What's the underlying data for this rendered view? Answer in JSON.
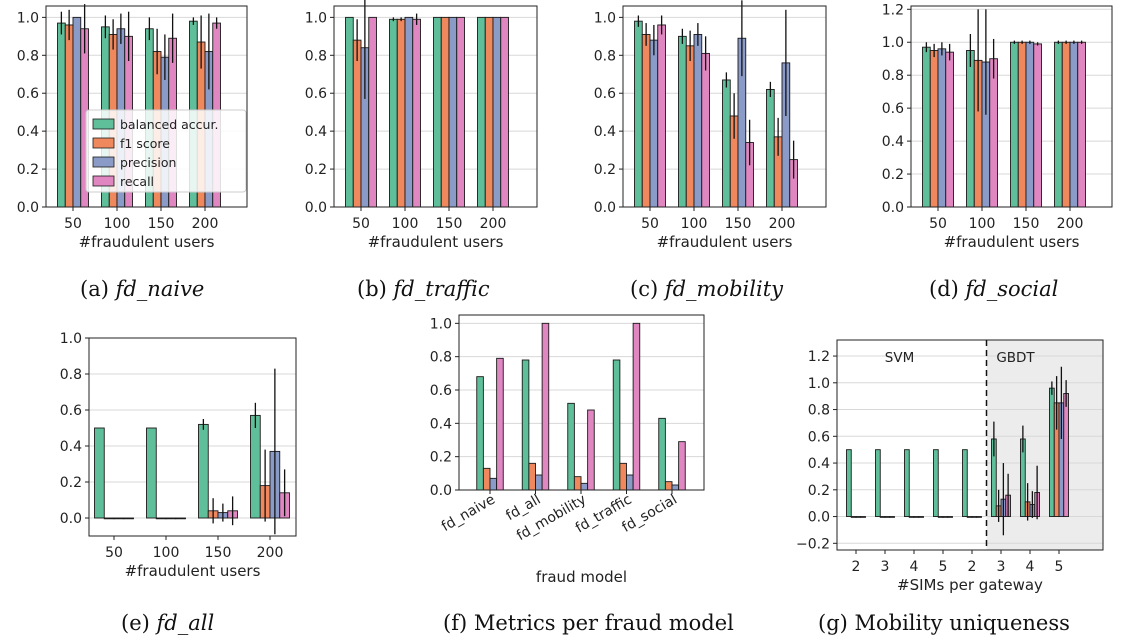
{
  "colors": {
    "balanced": "#5fbf9a",
    "f1": "#f0885e",
    "precision": "#8b9bc8",
    "recall": "#e086c0",
    "grid": "#d8d8d8",
    "shade": "#ececec"
  },
  "legend": [
    {
      "label": "balanced accur.",
      "color": "#5fbf9a"
    },
    {
      "label": "f1 score",
      "color": "#f0885e"
    },
    {
      "label": "precision",
      "color": "#8b9bc8"
    },
    {
      "label": "recall",
      "color": "#e086c0"
    }
  ],
  "chart_data": [
    {
      "id": "a",
      "type": "bar",
      "caption_prefix": "(a) ",
      "caption_italic": "fd_naive",
      "xlabel": "#fraudulent users",
      "ylim": [
        0,
        1.06
      ],
      "yticks": [
        "0.0",
        "0.2",
        "0.4",
        "0.6",
        "0.8",
        "1.0"
      ],
      "categories": [
        "50",
        "100",
        "150",
        "200"
      ],
      "series": [
        {
          "name": "balanced accur.",
          "values": [
            0.97,
            0.95,
            0.94,
            0.98
          ],
          "err": [
            0.06,
            0.06,
            0.06,
            0.02
          ]
        },
        {
          "name": "f1 score",
          "values": [
            0.96,
            0.91,
            0.82,
            0.87
          ],
          "err": [
            0.08,
            0.08,
            0.12,
            0.14
          ]
        },
        {
          "name": "precision",
          "values": [
            1.0,
            0.94,
            0.79,
            0.82
          ],
          "err": [
            0.0,
            0.08,
            0.12,
            0.2
          ]
        },
        {
          "name": "recall",
          "values": [
            0.94,
            0.9,
            0.89,
            0.97
          ],
          "err": [
            0.13,
            0.13,
            0.13,
            0.03
          ]
        }
      ]
    },
    {
      "id": "b",
      "type": "bar",
      "caption_prefix": "(b) ",
      "caption_italic": "fd_traffic",
      "xlabel": "#fraudulent users",
      "ylim": [
        0,
        1.06
      ],
      "yticks": [
        "0.0",
        "0.2",
        "0.4",
        "0.6",
        "0.8",
        "1.0"
      ],
      "categories": [
        "50",
        "100",
        "150",
        "200"
      ],
      "series": [
        {
          "name": "balanced accur.",
          "values": [
            1.0,
            0.99,
            1.0,
            1.0
          ],
          "err": [
            0,
            0.01,
            0,
            0
          ]
        },
        {
          "name": "f1 score",
          "values": [
            0.88,
            0.99,
            1.0,
            1.0
          ],
          "err": [
            0.11,
            0.01,
            0,
            0
          ]
        },
        {
          "name": "precision",
          "values": [
            0.84,
            1.0,
            1.0,
            1.0
          ],
          "err": [
            0.27,
            0.0,
            0,
            0
          ]
        },
        {
          "name": "recall",
          "values": [
            1.0,
            0.99,
            1.0,
            1.0
          ],
          "err": [
            0,
            0.03,
            0,
            0
          ]
        }
      ]
    },
    {
      "id": "c",
      "type": "bar",
      "caption_prefix": "(c) ",
      "caption_italic": "fd_mobility",
      "xlabel": "#fraudulent users",
      "ylim": [
        0,
        1.06
      ],
      "yticks": [
        "0.0",
        "0.2",
        "0.4",
        "0.6",
        "0.8",
        "1.0"
      ],
      "categories": [
        "50",
        "100",
        "150",
        "200"
      ],
      "series": [
        {
          "name": "balanced accur.",
          "values": [
            0.98,
            0.9,
            0.67,
            0.62
          ],
          "err": [
            0.03,
            0.04,
            0.04,
            0.04
          ]
        },
        {
          "name": "f1 score",
          "values": [
            0.91,
            0.85,
            0.48,
            0.37
          ],
          "err": [
            0.06,
            0.08,
            0.12,
            0.1
          ]
        },
        {
          "name": "precision",
          "values": [
            0.88,
            0.91,
            0.89,
            0.76
          ],
          "err": [
            0.08,
            0.06,
            0.2,
            0.28
          ]
        },
        {
          "name": "recall",
          "values": [
            0.96,
            0.81,
            0.34,
            0.25
          ],
          "err": [
            0.05,
            0.09,
            0.12,
            0.1
          ]
        }
      ]
    },
    {
      "id": "d",
      "type": "bar",
      "caption_prefix": "(d) ",
      "caption_italic": "fd_social",
      "xlabel": "#fraudulent users",
      "ylim": [
        0,
        1.22
      ],
      "yticks": [
        "0.0",
        "0.2",
        "0.4",
        "0.6",
        "0.8",
        "1.0",
        "1.2"
      ],
      "categories": [
        "50",
        "100",
        "150",
        "200"
      ],
      "series": [
        {
          "name": "balanced accur.",
          "values": [
            0.97,
            0.95,
            1.0,
            1.0
          ],
          "err": [
            0.03,
            0.1,
            0.01,
            0.01
          ]
        },
        {
          "name": "f1 score",
          "values": [
            0.95,
            0.89,
            1.0,
            1.0
          ],
          "err": [
            0.04,
            0.31,
            0.01,
            0.01
          ]
        },
        {
          "name": "precision",
          "values": [
            0.96,
            0.88,
            1.0,
            1.0
          ],
          "err": [
            0.04,
            0.32,
            0.01,
            0.01
          ]
        },
        {
          "name": "recall",
          "values": [
            0.94,
            0.9,
            0.99,
            1.0
          ],
          "err": [
            0.05,
            0.12,
            0.01,
            0.01
          ]
        }
      ]
    },
    {
      "id": "e",
      "type": "bar",
      "caption_prefix": "(e) ",
      "caption_italic": "fd_all",
      "xlabel": "#fraudulent users",
      "ylim": [
        -0.1,
        1.0
      ],
      "yticks": [
        "0.0",
        "0.2",
        "0.4",
        "0.6",
        "0.8",
        "1.0"
      ],
      "categories": [
        "50",
        "100",
        "150",
        "200"
      ],
      "series": [
        {
          "name": "balanced accur.",
          "values": [
            0.5,
            0.5,
            0.52,
            0.57
          ],
          "err": [
            0,
            0,
            0.03,
            0.07
          ]
        },
        {
          "name": "f1 score",
          "values": [
            0.0,
            0.0,
            0.04,
            0.18
          ],
          "err": [
            0,
            0,
            0.07,
            0.2
          ]
        },
        {
          "name": "precision",
          "values": [
            0.0,
            0.0,
            0.03,
            0.37
          ],
          "err": [
            0,
            0,
            0.05,
            0.46
          ]
        },
        {
          "name": "recall",
          "values": [
            0.0,
            0.0,
            0.04,
            0.14
          ],
          "err": [
            0,
            0,
            0.08,
            0.13
          ]
        }
      ]
    },
    {
      "id": "f",
      "type": "bar",
      "caption_prefix": "(f) Metrics per fraud model",
      "caption_italic": "",
      "xlabel": "fraud model",
      "ylim": [
        0,
        1.05
      ],
      "yticks": [
        "0.0",
        "0.2",
        "0.4",
        "0.6",
        "0.8",
        "1.0"
      ],
      "categories": [
        "fd_naive",
        "fd_all",
        "fd_mobility",
        "fd_traffic",
        "fd_social"
      ],
      "series": [
        {
          "name": "balanced accur.",
          "values": [
            0.68,
            0.78,
            0.52,
            0.78,
            0.43
          ]
        },
        {
          "name": "f1 score",
          "values": [
            0.13,
            0.16,
            0.08,
            0.16,
            0.05
          ]
        },
        {
          "name": "precision",
          "values": [
            0.07,
            0.09,
            0.04,
            0.09,
            0.03
          ]
        },
        {
          "name": "recall",
          "values": [
            0.79,
            1.0,
            0.48,
            1.0,
            0.29
          ]
        }
      ]
    },
    {
      "id": "g",
      "type": "bar",
      "caption_prefix": "(g) Mobility uniqueness",
      "caption_italic": "",
      "xlabel": "#SIMs per gateway",
      "ylim": [
        -0.25,
        1.32
      ],
      "yticks": [
        "−0.2",
        "0.0",
        "0.2",
        "0.4",
        "0.6",
        "0.8",
        "1.0",
        "1.2"
      ],
      "categories": [
        "2",
        "3",
        "4",
        "5",
        "2",
        "3",
        "4",
        "5"
      ],
      "regions": [
        "SVM",
        "GBDT"
      ],
      "series": [
        {
          "name": "balanced accur.",
          "values": [
            0.5,
            0.5,
            0.5,
            0.5,
            0.5,
            0.58,
            0.58,
            0.96
          ],
          "err": [
            0,
            0,
            0,
            0,
            0,
            0.13,
            0.1,
            0.05
          ]
        },
        {
          "name": "f1 score",
          "values": [
            0,
            0,
            0,
            0,
            0,
            0.08,
            0.11,
            0.85
          ],
          "err": [
            0,
            0,
            0,
            0,
            0,
            0.12,
            0.14,
            0.2
          ]
        },
        {
          "name": "precision",
          "values": [
            0,
            0,
            0,
            0,
            0,
            0.13,
            0.09,
            0.85
          ],
          "err": [
            0,
            0,
            0,
            0,
            0,
            0.27,
            0.1,
            0.27
          ]
        },
        {
          "name": "recall",
          "values": [
            0,
            0,
            0,
            0,
            0,
            0.16,
            0.18,
            0.92
          ],
          "err": [
            0,
            0,
            0,
            0,
            0,
            0.16,
            0.2,
            0.1
          ]
        }
      ]
    }
  ]
}
